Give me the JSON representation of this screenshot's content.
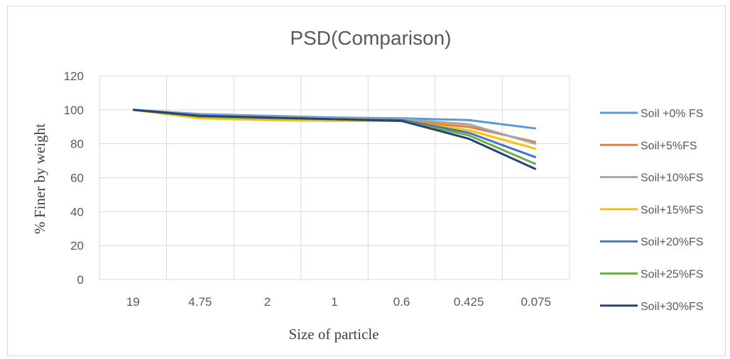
{
  "chart_data": {
    "type": "line",
    "title": "PSD(Comparison)",
    "xlabel": "Size of particle",
    "ylabel": "% Finer by weight",
    "categories": [
      "19",
      "4.75",
      "2",
      "1",
      "0.6",
      "0.425",
      "0.075"
    ],
    "ylim": [
      0,
      120
    ],
    "yticks": [
      0,
      20,
      40,
      60,
      80,
      100,
      120
    ],
    "grid": true,
    "legend_position": "right",
    "series": [
      {
        "name": "Soil +0% FS",
        "color": "#5b9bd5",
        "values": [
          100,
          97.5,
          96.5,
          95.5,
          95,
          94,
          89
        ]
      },
      {
        "name": "Soil+5%FS",
        "color": "#ed7d31",
        "values": [
          100,
          95.5,
          94.5,
          94,
          93.5,
          90,
          81
        ]
      },
      {
        "name": "Soil+10%FS",
        "color": "#a5a5a5",
        "values": [
          100,
          97,
          96,
          95,
          94.5,
          91.5,
          80
        ]
      },
      {
        "name": "Soil+15%FS",
        "color": "#ffc000",
        "values": [
          100,
          95,
          94,
          93.5,
          93.5,
          88,
          77
        ]
      },
      {
        "name": "Soil+20%FS",
        "color": "#4472c4",
        "values": [
          100,
          96.5,
          95.5,
          94.5,
          94,
          86.5,
          72
        ]
      },
      {
        "name": "Soil+25%FS",
        "color": "#70ad47",
        "values": [
          100,
          96,
          95,
          94.5,
          93.5,
          85,
          68
        ]
      },
      {
        "name": "Soil+30%FS",
        "color": "#264478",
        "values": [
          100,
          96.5,
          95.5,
          94.5,
          93.5,
          83,
          65
        ]
      }
    ]
  }
}
